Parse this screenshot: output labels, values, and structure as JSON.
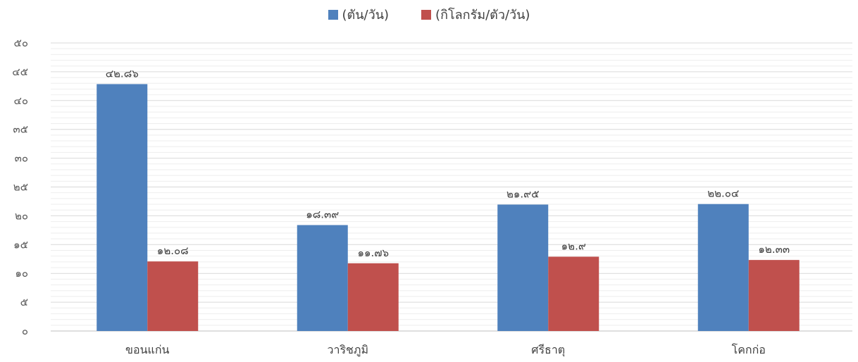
{
  "chart_data": {
    "type": "bar",
    "categories": [
      "ขอนแก่น",
      "วาริชภูมิ",
      "ศรีธาตุ",
      "โคกก่อ"
    ],
    "series": [
      {
        "name": "(ตัน/วัน)",
        "values": [
          42.86,
          18.39,
          21.95,
          22.04
        ],
        "labels": [
          "๔๒.๘๖",
          "๑๘.๓๙",
          "๒๑.๙๕",
          "๒๒.๐๔"
        ]
      },
      {
        "name": "(กิโลกรัม/ตัว/วัน)",
        "values": [
          12.08,
          11.76,
          12.9,
          12.33
        ],
        "labels": [
          "๑๒.๐๘",
          "๑๑.๗๖",
          "๑๒.๙",
          "๑๒.๓๓"
        ]
      }
    ],
    "ylim": [
      0,
      50
    ],
    "yticks": [
      0,
      5,
      10,
      15,
      20,
      25,
      30,
      35,
      40,
      45,
      50
    ],
    "ytick_labels": [
      "๐",
      "๕",
      "๑๐",
      "๑๕",
      "๒๐",
      "๒๕",
      "๓๐",
      "๓๕",
      "๔๐",
      "๔๕",
      "๕๐"
    ],
    "grid": true,
    "legend_position": "top-center",
    "colors": [
      "#4f81bd",
      "#c0504d"
    ],
    "grid_color": "#d9d9d9"
  }
}
